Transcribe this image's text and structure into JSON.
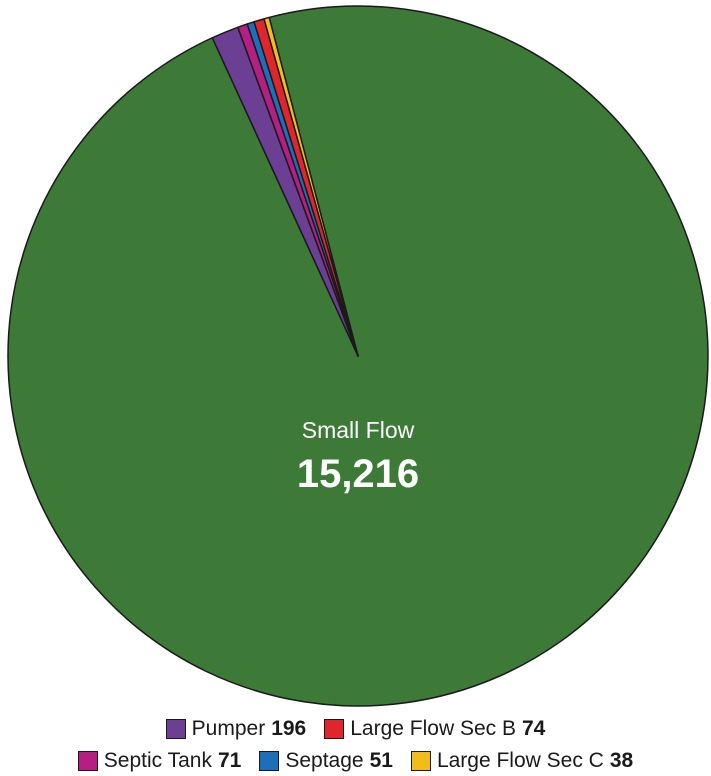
{
  "chart_data": {
    "type": "pie",
    "categories": [
      "Small Flow",
      "Pumper",
      "Septic Tank",
      "Septage",
      "Large Flow Sec B",
      "Large Flow Sec C"
    ],
    "values": [
      15216,
      196,
      71,
      51,
      74,
      38
    ],
    "value_labels": [
      "15,216",
      "196",
      "71",
      "51",
      "74",
      "38"
    ],
    "colors": [
      "#3d7a37",
      "#6a3f94",
      "#b51e82",
      "#1c6fb8",
      "#e0262c",
      "#f2bd1b"
    ],
    "start_angle_deg": -14.7,
    "direction": "clockwise",
    "center_label": {
      "name": "Small Flow",
      "value": "15,216"
    },
    "legend_placement": "bottom",
    "legend_rows": [
      [
        {
          "label": "Pumper",
          "value": "196",
          "color": "#6a3f94"
        },
        {
          "label": "Large Flow Sec B",
          "value": "74",
          "color": "#e0262c"
        }
      ],
      [
        {
          "label": "Septic Tank",
          "value": "71",
          "color": "#b51e82"
        },
        {
          "label": "Septage",
          "value": "51",
          "color": "#1c6fb8"
        },
        {
          "label": "Large Flow Sec C",
          "value": "38",
          "color": "#f2bd1b"
        }
      ]
    ]
  }
}
